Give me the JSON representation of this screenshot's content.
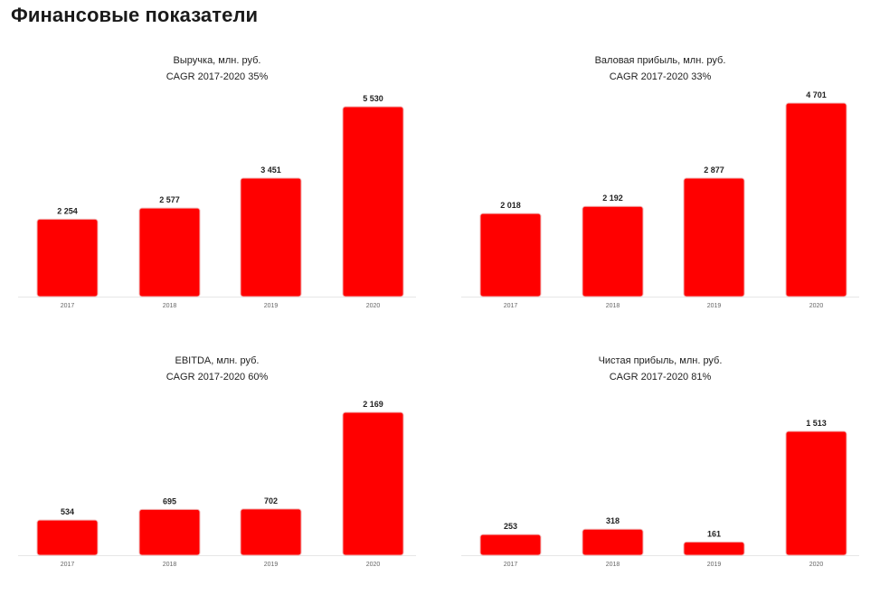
{
  "page": {
    "title": "Финансовые показатели"
  },
  "chart_data": [
    {
      "type": "bar",
      "title": "Выручка, млн. руб.",
      "subtitle": "CAGR 2017-2020 35%",
      "categories": [
        "2017",
        "2018",
        "2019",
        "2020"
      ],
      "values": [
        2254,
        2577,
        3451,
        5530
      ],
      "labels": [
        "2 254",
        "2 577",
        "3 451",
        "5 530"
      ],
      "color": "#ff0000"
    },
    {
      "type": "bar",
      "title": "Валовая прибыль, млн. руб.",
      "subtitle": "CAGR 2017-2020 33%",
      "categories": [
        "2017",
        "2018",
        "2019",
        "2020"
      ],
      "values": [
        2018,
        2192,
        2877,
        4701
      ],
      "labels": [
        "2 018",
        "2 192",
        "2 877",
        "4 701"
      ],
      "color": "#ff0000"
    },
    {
      "type": "bar",
      "title": "EBITDA, млн. руб.",
      "subtitle": "CAGR 2017-2020 60%",
      "categories": [
        "2017",
        "2018",
        "2019",
        "2020"
      ],
      "values": [
        534,
        695,
        702,
        2169
      ],
      "labels": [
        "534",
        "695",
        "702",
        "2 169"
      ],
      "color": "#ff0000"
    },
    {
      "type": "bar",
      "title": "Чистая прибыль, млн. руб.",
      "subtitle": "CAGR 2017-2020 81%",
      "categories": [
        "2017",
        "2018",
        "2019",
        "2020"
      ],
      "values": [
        253,
        318,
        161,
        1513
      ],
      "labels": [
        "253",
        "318",
        "161",
        "1 513"
      ],
      "color": "#ff0000"
    }
  ]
}
